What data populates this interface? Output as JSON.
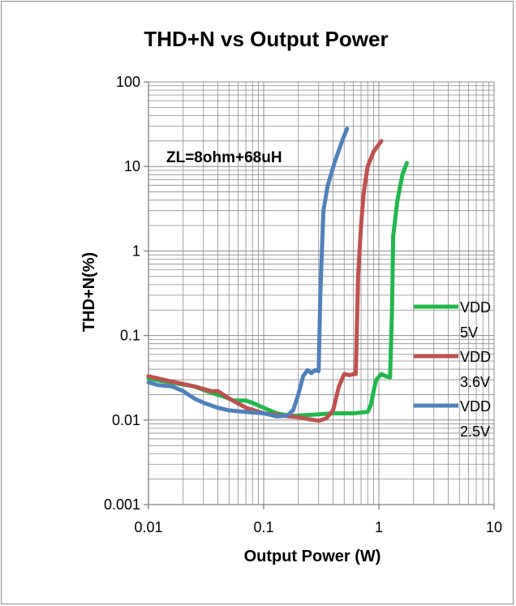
{
  "chart_data": {
    "type": "line",
    "title": "THD+N vs Output Power",
    "xlabel": "Output Power (W)",
    "ylabel": "THD+N(%)",
    "x_scale": "log",
    "y_scale": "log",
    "xlim": [
      0.01,
      10
    ],
    "ylim": [
      0.001,
      100
    ],
    "x_tick_labels": [
      "0.01",
      "0.1",
      "1",
      "10"
    ],
    "y_tick_labels": [
      "0.001",
      "0.01",
      "0.1",
      "1",
      "10",
      "100"
    ],
    "grid": true,
    "legend_position": "right",
    "annotation": "ZL=8ohm+68uH",
    "series": [
      {
        "name": "VDD 5V",
        "color": "#1fb849",
        "points": [
          [
            0.01,
            0.031
          ],
          [
            0.013,
            0.029
          ],
          [
            0.018,
            0.027
          ],
          [
            0.025,
            0.025
          ],
          [
            0.035,
            0.021
          ],
          [
            0.045,
            0.019
          ],
          [
            0.055,
            0.017
          ],
          [
            0.07,
            0.017
          ],
          [
            0.08,
            0.016
          ],
          [
            0.1,
            0.014
          ],
          [
            0.13,
            0.012
          ],
          [
            0.17,
            0.0112
          ],
          [
            0.25,
            0.0115
          ],
          [
            0.4,
            0.012
          ],
          [
            0.6,
            0.012
          ],
          [
            0.8,
            0.0125
          ],
          [
            0.85,
            0.015
          ],
          [
            0.9,
            0.022
          ],
          [
            0.95,
            0.03
          ],
          [
            1.05,
            0.035
          ],
          [
            1.15,
            0.033
          ],
          [
            1.25,
            0.032
          ],
          [
            1.3,
            0.2
          ],
          [
            1.33,
            1.5
          ],
          [
            1.45,
            4
          ],
          [
            1.6,
            8
          ],
          [
            1.75,
            11
          ]
        ]
      },
      {
        "name": "VDD 3.6V",
        "color": "#c0504d",
        "points": [
          [
            0.01,
            0.033
          ],
          [
            0.015,
            0.029
          ],
          [
            0.025,
            0.025
          ],
          [
            0.035,
            0.022
          ],
          [
            0.04,
            0.022
          ],
          [
            0.05,
            0.018
          ],
          [
            0.07,
            0.014
          ],
          [
            0.1,
            0.012
          ],
          [
            0.15,
            0.0112
          ],
          [
            0.2,
            0.0108
          ],
          [
            0.25,
            0.0102
          ],
          [
            0.3,
            0.0098
          ],
          [
            0.35,
            0.0105
          ],
          [
            0.4,
            0.013
          ],
          [
            0.45,
            0.025
          ],
          [
            0.5,
            0.035
          ],
          [
            0.56,
            0.034
          ],
          [
            0.6,
            0.035
          ],
          [
            0.63,
            0.035
          ],
          [
            0.66,
            0.5
          ],
          [
            0.7,
            2
          ],
          [
            0.74,
            5
          ],
          [
            0.8,
            10
          ],
          [
            0.9,
            15
          ],
          [
            1.05,
            20
          ]
        ]
      },
      {
        "name": "VDD 2.5V",
        "color": "#4f81bd",
        "points": [
          [
            0.01,
            0.028
          ],
          [
            0.012,
            0.026
          ],
          [
            0.016,
            0.025
          ],
          [
            0.02,
            0.022
          ],
          [
            0.025,
            0.018
          ],
          [
            0.03,
            0.016
          ],
          [
            0.04,
            0.014
          ],
          [
            0.05,
            0.013
          ],
          [
            0.07,
            0.0125
          ],
          [
            0.1,
            0.012
          ],
          [
            0.13,
            0.011
          ],
          [
            0.16,
            0.0113
          ],
          [
            0.18,
            0.013
          ],
          [
            0.2,
            0.02
          ],
          [
            0.22,
            0.033
          ],
          [
            0.24,
            0.039
          ],
          [
            0.26,
            0.036
          ],
          [
            0.28,
            0.039
          ],
          [
            0.3,
            0.038
          ],
          [
            0.31,
            0.3
          ],
          [
            0.33,
            3
          ],
          [
            0.36,
            6
          ],
          [
            0.42,
            12
          ],
          [
            0.48,
            20
          ],
          [
            0.53,
            28
          ]
        ]
      }
    ]
  }
}
